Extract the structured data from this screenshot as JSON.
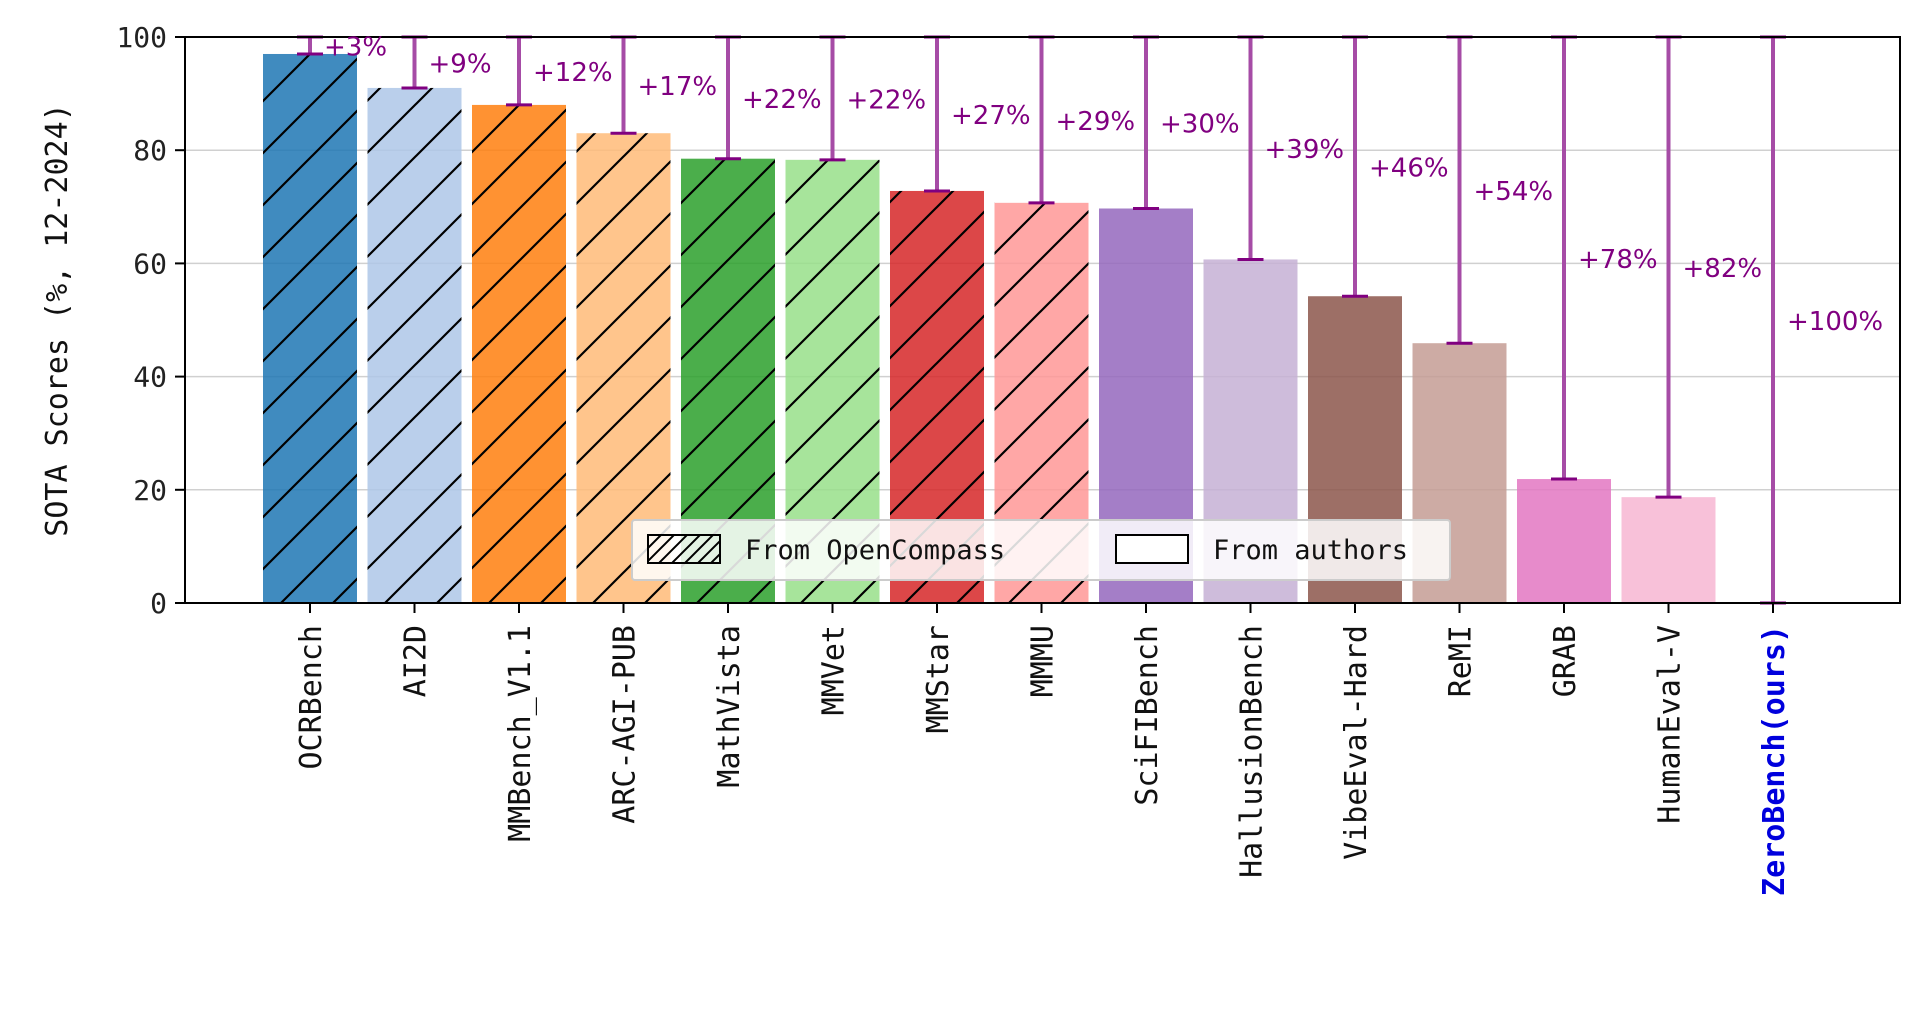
{
  "chart_data": {
    "type": "bar",
    "ylabel": "SOTA Scores (%, 12-2024)",
    "ylim": [
      0,
      100
    ],
    "yticks": [
      0,
      20,
      40,
      60,
      80,
      100
    ],
    "grid": "horizontal",
    "legend": {
      "placement": "lower-center",
      "entries": [
        {
          "label": "From OpenCompass",
          "style": "hatched"
        },
        {
          "label": "From authors",
          "style": "plain"
        }
      ]
    },
    "annotation_color": "#800080",
    "errorbar_color": "#a64ca6",
    "highlight_color": "#0000dd",
    "bars": [
      {
        "category": "OCRBench",
        "value": 97,
        "gain": "+3%",
        "color": "#1f77b4",
        "source": "opencompass"
      },
      {
        "category": "AI2D",
        "value": 91,
        "gain": "+9%",
        "color": "#aec7e8",
        "source": "opencompass"
      },
      {
        "category": "MMBench_V1.1",
        "value": 88,
        "gain": "+12%",
        "color": "#ff7f0e",
        "source": "opencompass"
      },
      {
        "category": "ARC-AGI-PUB",
        "value": 83,
        "gain": "+17%",
        "color": "#ffbb78",
        "source": "opencompass"
      },
      {
        "category": "MathVista",
        "value": 78.5,
        "gain": "+22%",
        "color": "#2ca02c",
        "source": "opencompass"
      },
      {
        "category": "MMVet",
        "value": 78.3,
        "gain": "+22%",
        "color": "#98df8a",
        "source": "opencompass"
      },
      {
        "category": "MMStar",
        "value": 72.8,
        "gain": "+27%",
        "color": "#d62728",
        "source": "opencompass"
      },
      {
        "category": "MMMU",
        "value": 70.7,
        "gain": "+29%",
        "color": "#ff9896",
        "source": "opencompass"
      },
      {
        "category": "SciFIBench",
        "value": 69.7,
        "gain": "+30%",
        "color": "#9467bd",
        "source": "authors"
      },
      {
        "category": "HallusionBench",
        "value": 60.7,
        "gain": "+39%",
        "color": "#c5b0d5",
        "source": "authors"
      },
      {
        "category": "VibeEval-Hard",
        "value": 54.2,
        "gain": "+46%",
        "color": "#8c564b",
        "source": "authors"
      },
      {
        "category": "ReMI",
        "value": 45.9,
        "gain": "+54%",
        "color": "#c49c94",
        "source": "authors"
      },
      {
        "category": "GRAB",
        "value": 21.9,
        "gain": "+78%",
        "color": "#e377c2",
        "source": "authors"
      },
      {
        "category": "HumanEval-V",
        "value": 18.7,
        "gain": "+82%",
        "color": "#f7b6d2",
        "source": "authors"
      },
      {
        "category": "ZeroBench(ours)",
        "value": 0,
        "gain": "+100%",
        "color": "#7f7f7f",
        "source": "authors",
        "highlight": true
      }
    ]
  }
}
